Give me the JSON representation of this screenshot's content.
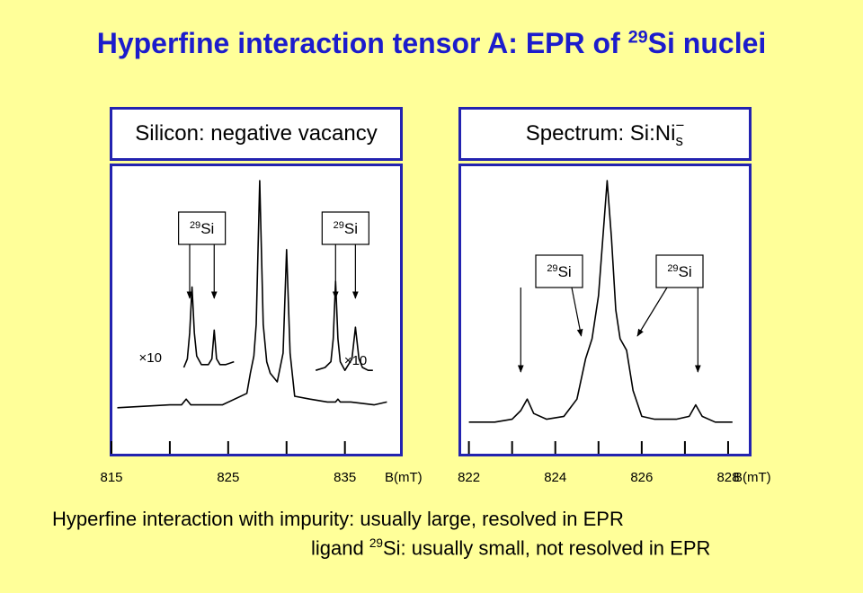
{
  "title": {
    "text": "Hyperfine interaction tensor A: EPR of ",
    "isotope_mass": "29",
    "isotope_rest": "Si nuclei"
  },
  "panels": [
    {
      "title": "Silicon: negative vacancy"
    },
    {
      "title_main": "Spectrum: Si:Ni",
      "title_sub": "s",
      "title_sup": "−"
    }
  ],
  "notes": {
    "line1": "Hyperfine interaction with impurity: usually large, resolved in EPR",
    "line2_pre": "ligand ",
    "line2_mass": "29",
    "line2_post": "Si: usually small, not resolved in EPR"
  },
  "chart_data": [
    {
      "type": "line",
      "title": "Silicon: negative vacancy",
      "xlabel": "B(mT)",
      "xlim": [
        815,
        839.8
      ],
      "ylim": [
        0,
        1
      ],
      "x_ticks": [
        815,
        820,
        825,
        830,
        835
      ],
      "x_tick_labels": [
        "815",
        "825",
        "835"
      ],
      "x_tick_label_values": [
        815,
        825,
        835
      ],
      "series": [
        {
          "x": [
            815.5,
            820,
            821,
            821.4,
            821.8,
            823,
            824.5,
            826.6,
            826.9,
            827.2,
            827.4,
            827.7,
            828,
            828.3,
            828.6,
            829.2,
            829.7,
            830,
            830.3,
            830.7,
            832,
            833.5,
            834.2,
            834.4,
            834.6,
            835.5,
            837.5,
            838.6
          ],
          "y": [
            0.16,
            0.17,
            0.17,
            0.19,
            0.17,
            0.17,
            0.17,
            0.21,
            0.28,
            0.34,
            0.45,
            0.95,
            0.45,
            0.32,
            0.28,
            0.25,
            0.35,
            0.71,
            0.35,
            0.2,
            0.19,
            0.18,
            0.18,
            0.19,
            0.18,
            0.18,
            0.17,
            0.18
          ]
        },
        {
          "label": "×10",
          "x": [
            821.2,
            821.5,
            821.7,
            821.9,
            822.1,
            822.3,
            822.7,
            823.3,
            823.6,
            823.8,
            824,
            824.3,
            824.8,
            825.5
          ],
          "y": [
            0.3,
            0.33,
            0.42,
            0.58,
            0.42,
            0.34,
            0.31,
            0.31,
            0.33,
            0.43,
            0.33,
            0.31,
            0.31,
            0.32
          ]
        },
        {
          "label": "×10",
          "x": [
            832.5,
            833.3,
            833.8,
            834,
            834.2,
            834.4,
            834.6,
            835,
            835.6,
            835.9,
            836.2,
            836.5,
            837,
            837.4
          ],
          "y": [
            0.29,
            0.3,
            0.32,
            0.4,
            0.6,
            0.4,
            0.32,
            0.29,
            0.33,
            0.44,
            0.33,
            0.3,
            0.29,
            0.29
          ]
        }
      ],
      "annotations": [
        {
          "text_mass": "29",
          "text_rest": "Si",
          "arrows_x": [
            821.7,
            823.8
          ]
        },
        {
          "text_mass": "29",
          "text_rest": "Si",
          "arrows_x": [
            834.2,
            835.9
          ]
        }
      ]
    },
    {
      "type": "line",
      "title": "Spectrum: Si:Ni−",
      "xlabel": "B(mT)",
      "xlim": [
        821.8,
        828.5
      ],
      "ylim": [
        0,
        1
      ],
      "x_ticks": [
        822,
        823,
        824,
        825,
        826,
        827,
        828
      ],
      "x_tick_labels": [
        "822",
        "824",
        "826",
        "828"
      ],
      "x_tick_label_values": [
        822,
        824,
        826,
        828
      ],
      "series": [
        {
          "x": [
            822,
            822.6,
            823,
            823.2,
            823.35,
            823.5,
            823.8,
            824.2,
            824.5,
            824.7,
            824.85,
            825,
            825.1,
            825.2,
            825.3,
            825.4,
            825.5,
            825.65,
            825.8,
            826,
            826.3,
            826.8,
            827.1,
            827.25,
            827.4,
            827.7,
            828.1
          ],
          "y": [
            0.11,
            0.11,
            0.12,
            0.15,
            0.19,
            0.14,
            0.12,
            0.13,
            0.19,
            0.33,
            0.4,
            0.55,
            0.75,
            0.95,
            0.75,
            0.5,
            0.4,
            0.36,
            0.22,
            0.13,
            0.12,
            0.12,
            0.13,
            0.17,
            0.13,
            0.11,
            0.11
          ]
        }
      ],
      "annotations": [
        {
          "text_mass": "29",
          "text_rest": "Si",
          "arrow_from_x": 823.2,
          "arrow_to_x": 823.2,
          "arrow2_to_x": 824.6
        },
        {
          "text_mass": "29",
          "text_rest": "Si",
          "arrow_from_x": 827.3,
          "arrow_to_x": 827.3,
          "arrow2_to_x": 825.9
        }
      ]
    }
  ]
}
